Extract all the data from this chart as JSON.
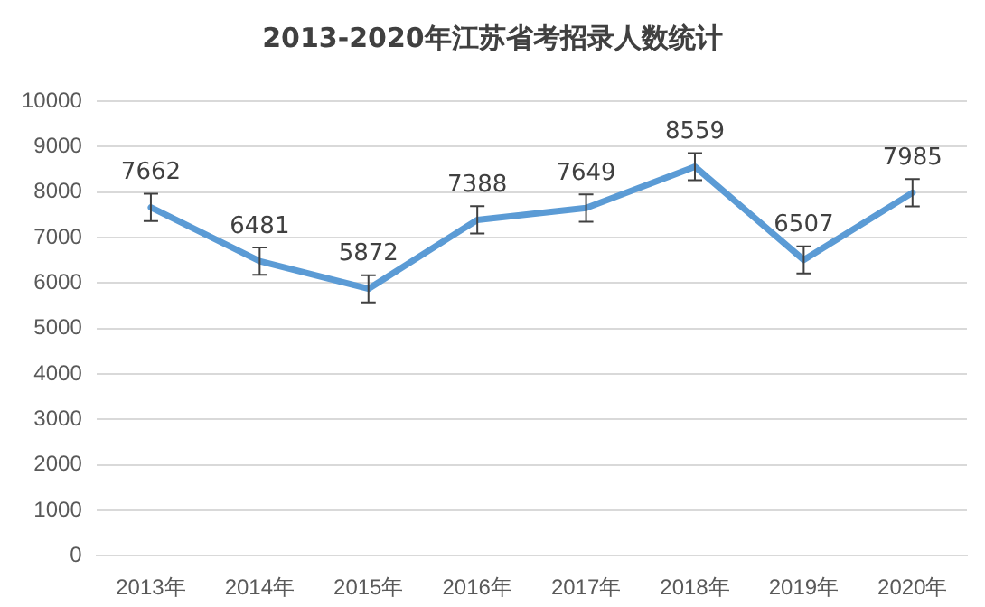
{
  "chart_data": {
    "type": "line",
    "title": "2013-2020年江苏省考招录人数统计",
    "categories": [
      "2013年",
      "2014年",
      "2015年",
      "2016年",
      "2017年",
      "2018年",
      "2019年",
      "2020年"
    ],
    "series": [
      {
        "color": "#5b9bd5",
        "values": [
          7662,
          6481,
          5872,
          7388,
          7649,
          8559,
          6507,
          7985
        ],
        "errors": [
          300,
          300,
          300,
          300,
          300,
          300,
          300,
          300
        ]
      }
    ],
    "ylim": [
      0,
      10000
    ],
    "yticks": [
      0,
      1000,
      2000,
      3000,
      4000,
      5000,
      6000,
      7000,
      8000,
      9000,
      10000
    ],
    "grid": "y",
    "legend": false,
    "marker": "none",
    "line_style": "solid",
    "data_labels": true
  }
}
